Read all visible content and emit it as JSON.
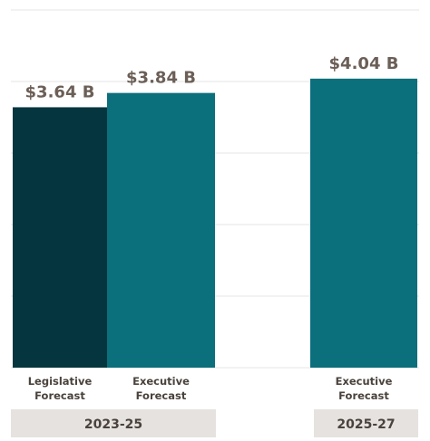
{
  "chart_data": {
    "type": "bar",
    "unit_suffix": " B",
    "ylim": [
      0,
      5
    ],
    "grid": true,
    "bars": [
      {
        "label_line1": "Legislative",
        "label_line2": "Forecast",
        "value": 3.64,
        "value_label": "$3.64 B",
        "color": "#053640",
        "group": "2023-25"
      },
      {
        "label_line1": "Executive",
        "label_line2": "Forecast",
        "value": 3.84,
        "value_label": "$3.84 B",
        "color": "#0B6F7C",
        "group": "2023-25"
      },
      {
        "label_line1": "Executive",
        "label_line2": "Forecast",
        "value": 4.04,
        "value_label": "$4.04 B",
        "color": "#0B6F7C",
        "group": "2025-27"
      }
    ],
    "groups": [
      {
        "name": "2023-25"
      },
      {
        "name": "2025-27"
      }
    ]
  },
  "colors": {
    "value_text": "#6B5F57",
    "label_text": "#4A423C",
    "group_bg": "#E6E2DF",
    "grid": "#E4E4E4"
  }
}
